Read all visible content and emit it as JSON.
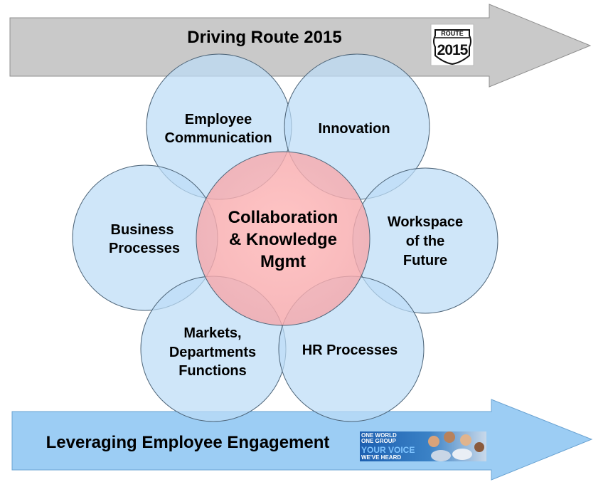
{
  "top_arrow": {
    "label": "Driving Route 2015",
    "badge": {
      "top_text": "ROUTE",
      "bottom_text": "2015",
      "icon": "route-shield-icon"
    },
    "color": "#c9c9c9"
  },
  "center": {
    "lines": [
      "Collaboration",
      "& Knowledge",
      "Mgmt"
    ],
    "color": "#f5b3b5"
  },
  "circles": [
    {
      "id": "employee-communication",
      "lines": [
        "Employee",
        "Communication"
      ]
    },
    {
      "id": "innovation",
      "lines": [
        "Innovation"
      ]
    },
    {
      "id": "business-processes",
      "lines": [
        "Business",
        "Processes"
      ]
    },
    {
      "id": "workspace-of-the-future",
      "lines": [
        "Workspace",
        "of the",
        "Future"
      ]
    },
    {
      "id": "markets-departments-functions",
      "lines": [
        "Markets,",
        "Departments",
        "Functions"
      ]
    },
    {
      "id": "hr-processes",
      "lines": [
        "HR Processes"
      ]
    }
  ],
  "circle_color": "#bcdcf7",
  "bottom_arrow": {
    "label": "Leveraging Employee Engagement",
    "badge": {
      "lines": [
        "ONE WORLD",
        "ONE GROUP",
        "YOUR VOICE",
        "WE'VE HEARD"
      ],
      "icon": "team-photo-banner"
    },
    "color": "#9ccdf4"
  }
}
